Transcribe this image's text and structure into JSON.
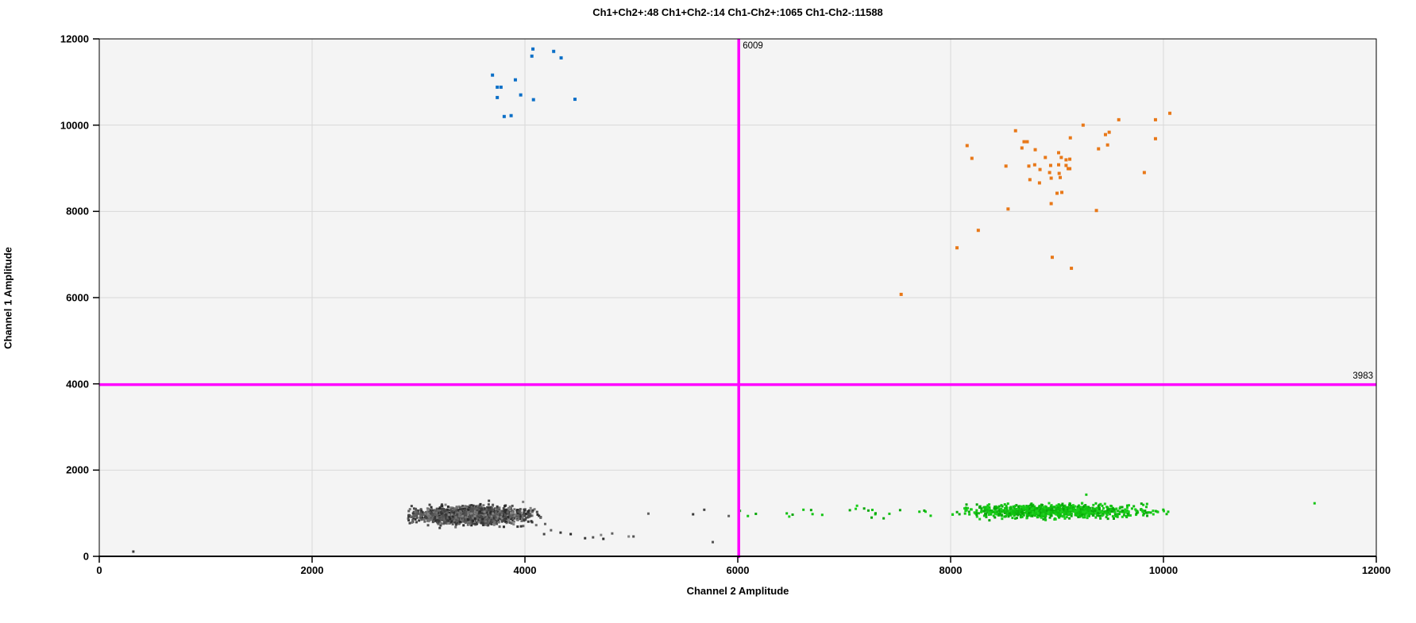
{
  "title": "Ch1+Ch2+:48  Ch1+Ch2-:14  Ch1-Ch2+:1065  Ch1-Ch2-:11588",
  "quadrant_counts": {
    "ch1pos_ch2pos": 48,
    "ch1pos_ch2neg": 14,
    "ch1neg_ch2pos": 1065,
    "ch1neg_ch2neg": 11588
  },
  "colors": {
    "plot_background": "#f4f4f4",
    "page_background": "#ffffff",
    "gridline": "#d9d9d9",
    "axis": "#000000",
    "threshold": "#ff00ff"
  },
  "chart_data": {
    "type": "scatter",
    "title": "Ch1+Ch2+:48  Ch1+Ch2-:14  Ch1-Ch2+:1065  Ch1-Ch2-:11588",
    "xlabel": "Channel 2 Amplitude",
    "ylabel": "Channel 1 Amplitude",
    "xlim": [
      0,
      12000
    ],
    "ylim": [
      0,
      12000
    ],
    "xticks": [
      0,
      2000,
      4000,
      6000,
      8000,
      10000,
      12000
    ],
    "yticks": [
      0,
      2000,
      4000,
      6000,
      8000,
      10000,
      12000
    ],
    "grid": true,
    "legend": "none",
    "thresholds": {
      "x": {
        "value": 6009,
        "label": "6009",
        "color": "#ff00ff"
      },
      "y": {
        "value": 3983,
        "label": "3983",
        "color": "#ff00ff"
      }
    },
    "series": [
      {
        "name": "ch1pos-ch2neg-droplets",
        "label": "Ch1+Ch2-",
        "color": "#0b6fc7",
        "size": 4,
        "count": 14,
        "points": [
          [
            4075,
            11765
          ],
          [
            4270,
            11710
          ],
          [
            4065,
            11600
          ],
          [
            4340,
            11560
          ],
          [
            3695,
            11160
          ],
          [
            3910,
            11050
          ],
          [
            3740,
            10880
          ],
          [
            3775,
            10880
          ],
          [
            3960,
            10700
          ],
          [
            3740,
            10640
          ],
          [
            4080,
            10590
          ],
          [
            4470,
            10600
          ],
          [
            3805,
            10200
          ],
          [
            3870,
            10220
          ]
        ]
      },
      {
        "name": "ch1pos-ch2pos-droplets",
        "label": "Ch1+Ch2+",
        "color": "#e87818",
        "size": 4,
        "count": 48,
        "points": [
          [
            10060,
            10275
          ],
          [
            9925,
            10125
          ],
          [
            9580,
            10125
          ],
          [
            9245,
            10000
          ],
          [
            8610,
            9870
          ],
          [
            9455,
            9780
          ],
          [
            9490,
            9835
          ],
          [
            9125,
            9705
          ],
          [
            9925,
            9685
          ],
          [
            8155,
            9525
          ],
          [
            8690,
            9615
          ],
          [
            8720,
            9615
          ],
          [
            8670,
            9470
          ],
          [
            8200,
            9230
          ],
          [
            8795,
            9430
          ],
          [
            9475,
            9540
          ],
          [
            9390,
            9450
          ],
          [
            9015,
            9360
          ],
          [
            8890,
            9250
          ],
          [
            9040,
            9250
          ],
          [
            9085,
            9195
          ],
          [
            9120,
            9210
          ],
          [
            8520,
            9050
          ],
          [
            8735,
            9050
          ],
          [
            8790,
            9080
          ],
          [
            8940,
            9065
          ],
          [
            9015,
            9080
          ],
          [
            9085,
            9065
          ],
          [
            9105,
            8990
          ],
          [
            9120,
            8990
          ],
          [
            8840,
            8970
          ],
          [
            8930,
            8900
          ],
          [
            9020,
            8880
          ],
          [
            9820,
            8900
          ],
          [
            8745,
            8735
          ],
          [
            8945,
            8770
          ],
          [
            9030,
            8785
          ],
          [
            8835,
            8660
          ],
          [
            9000,
            8420
          ],
          [
            9045,
            8440
          ],
          [
            8945,
            8180
          ],
          [
            8540,
            8055
          ],
          [
            9370,
            8020
          ],
          [
            8260,
            7560
          ],
          [
            8060,
            7155
          ],
          [
            8955,
            6935
          ],
          [
            9135,
            6680
          ],
          [
            7535,
            6075
          ]
        ]
      },
      {
        "name": "ch1neg-ch2pos-droplets",
        "label": "Ch1-Ch2+",
        "color": "#12c412",
        "palette": [
          "#12c412",
          "#0fbc0f",
          "#0aa80a",
          "#1bcf1b"
        ],
        "size": 3,
        "count": 1065,
        "gen": [
          {
            "type": "gauss",
            "n": 880,
            "cx": 8950,
            "cy": 1050,
            "sx": 430,
            "sy": 78,
            "clampx": [
              8060,
              10060
            ],
            "clampy": [
              800,
              1380
            ]
          },
          {
            "type": "uniform",
            "n": 24,
            "x0": 6450,
            "x1": 8060,
            "cy": 1015,
            "sy": 65
          }
        ],
        "points": [
          [
            6020,
            1055
          ],
          [
            6095,
            935
          ],
          [
            6170,
            985
          ],
          [
            6617,
            1080
          ],
          [
            9275,
            1430
          ],
          [
            10030,
            980
          ],
          [
            11420,
            1230
          ]
        ]
      },
      {
        "name": "ch1neg-ch2neg-droplets",
        "label": "Ch1-Ch2-",
        "color": "#4a4a4a",
        "palette": [
          "#2b2b2b",
          "#383838",
          "#454545",
          "#525252",
          "#606060",
          "#707070",
          "#828282"
        ],
        "size": 3,
        "count": 11588,
        "gen": [
          {
            "type": "gauss",
            "n": 2400,
            "cx": 3480,
            "cy": 950,
            "sx": 235,
            "sy": 88,
            "clampx": [
              2900,
              4150
            ],
            "clampy": [
              600,
              1330
            ]
          },
          {
            "type": "gauss",
            "n": 900,
            "cx": 3450,
            "cy": 945,
            "sx": 140,
            "sy": 55,
            "clampx": [
              2950,
              4050
            ],
            "clampy": [
              680,
              1250
            ]
          }
        ],
        "points": [
          [
            320,
            110
          ],
          [
            4010,
            990
          ],
          [
            4075,
            1065
          ],
          [
            4190,
            750
          ],
          [
            4180,
            515
          ],
          [
            4245,
            605
          ],
          [
            4335,
            550
          ],
          [
            4430,
            515
          ],
          [
            4565,
            420
          ],
          [
            4640,
            440
          ],
          [
            4715,
            495
          ],
          [
            4737,
            405
          ],
          [
            4820,
            530
          ],
          [
            4975,
            460
          ],
          [
            5020,
            460
          ],
          [
            5160,
            990
          ],
          [
            5580,
            975
          ],
          [
            5685,
            1080
          ],
          [
            5765,
            330
          ],
          [
            5915,
            935
          ]
        ]
      }
    ]
  }
}
